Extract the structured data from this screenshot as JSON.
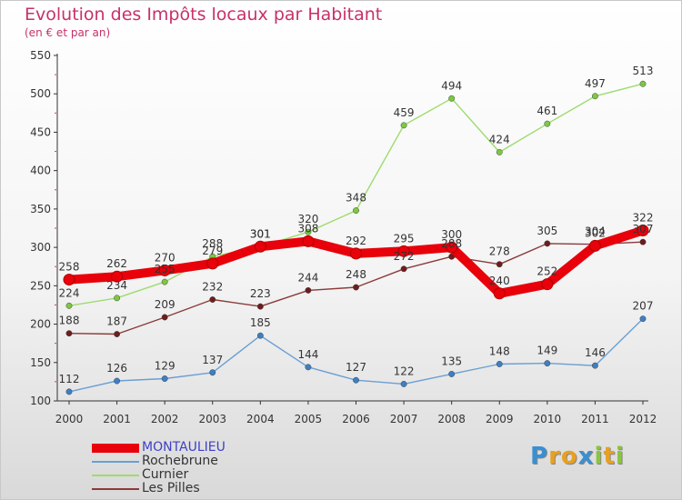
{
  "title": "Evolution des Impôts locaux par Habitant",
  "subtitle": "(en € et par an)",
  "brand": "Proxiti",
  "brand_colors": [
    "#3a8fd0",
    "#e8a020",
    "#e8a020",
    "#3a8fd0",
    "#8ac53c",
    "#e8a020",
    "#8ac53c"
  ],
  "chart_data": {
    "type": "line",
    "x": [
      "2000",
      "2001",
      "2002",
      "2003",
      "2004",
      "2005",
      "2006",
      "2007",
      "2008",
      "2009",
      "2010",
      "2011",
      "2012"
    ],
    "ylim": [
      100,
      550
    ],
    "yticks": [
      100,
      150,
      200,
      250,
      300,
      350,
      400,
      450,
      500,
      550
    ],
    "grid": false,
    "legend_position": "bottom-left",
    "series": [
      {
        "name": "MONTAULIEU",
        "color": "#e8000b",
        "marker": "#e8000b",
        "labels": "#333333",
        "emphasis": true,
        "values": [
          258,
          262,
          270,
          279,
          301,
          308,
          292,
          295,
          300,
          240,
          252,
          302,
          322
        ]
      },
      {
        "name": "Rochebrune",
        "color": "#6b9fd3",
        "marker": "#3c7fc4",
        "labels": "#333333",
        "emphasis": false,
        "values": [
          112,
          126,
          129,
          137,
          185,
          144,
          127,
          122,
          135,
          148,
          149,
          146,
          207
        ]
      },
      {
        "name": "Curnier",
        "color": "#9edb6e",
        "marker": "#7cc840",
        "labels": "#333333",
        "emphasis": false,
        "values": [
          224,
          234,
          255,
          288,
          301,
          320,
          348,
          459,
          494,
          424,
          461,
          497,
          513
        ]
      },
      {
        "name": "Les Pilles",
        "color": "#8b3a3a",
        "marker": "#6e1c1c",
        "labels": "#333333",
        "emphasis": false,
        "values": [
          188,
          187,
          209,
          232,
          223,
          244,
          248,
          272,
          288,
          278,
          305,
          304,
          307
        ]
      }
    ]
  }
}
